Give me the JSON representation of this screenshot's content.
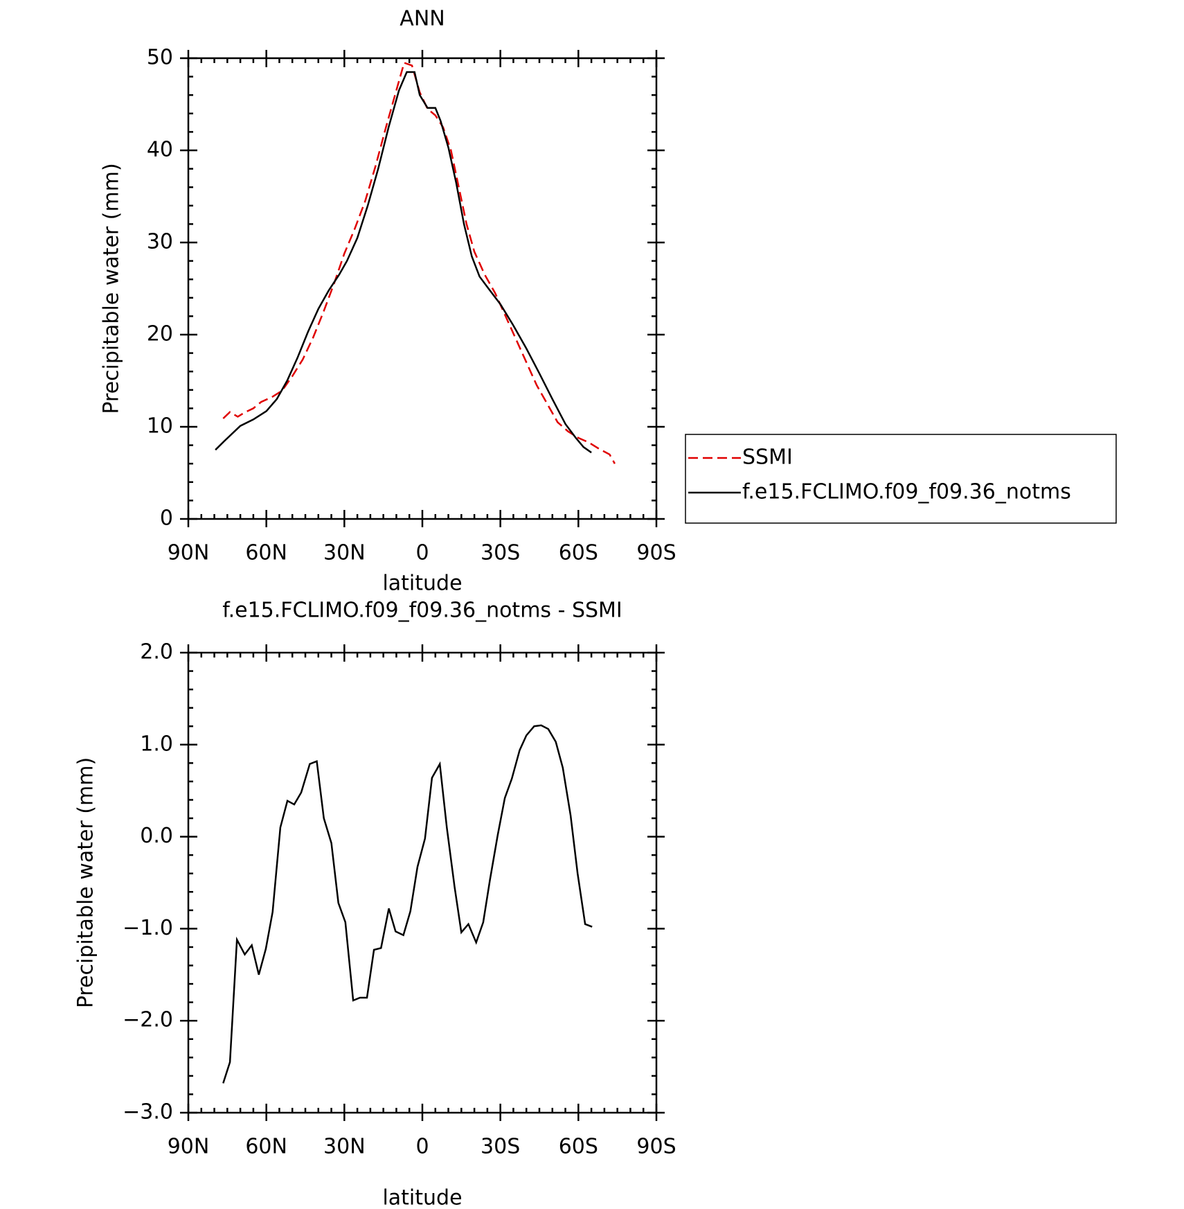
{
  "chart_data": [
    {
      "type": "line",
      "title": "ANN",
      "xlabel": "latitude",
      "ylabel": "Precipitable water (mm)",
      "xlim": [
        90,
        -90
      ],
      "xticks": [
        {
          "value": 90,
          "label": "90N"
        },
        {
          "value": 60,
          "label": "60N"
        },
        {
          "value": 30,
          "label": "30N"
        },
        0,
        {
          "value": -30,
          "label": "30S"
        },
        {
          "value": -60,
          "label": "60S"
        },
        {
          "value": -90,
          "label": "90S"
        }
      ],
      "ylim": [
        0,
        50
      ],
      "yticks": [
        0,
        10,
        20,
        30,
        40,
        50
      ],
      "legend": "right",
      "series": [
        {
          "name": "SSMI",
          "color": "#e00000",
          "style": "dashed",
          "x": [
            76.6,
            74,
            71,
            68,
            65,
            62,
            58,
            54,
            50,
            46,
            42,
            38,
            34,
            30,
            26,
            22,
            18,
            14,
            10,
            7,
            4,
            1,
            -2,
            -5,
            -8,
            -11,
            -14,
            -17,
            -20,
            -24,
            -28,
            -32,
            -36,
            -40,
            -44,
            -48,
            -52,
            -56,
            -60,
            -64,
            -68,
            -72,
            -74
          ],
          "values": [
            10.9,
            11.6,
            11.1,
            11.6,
            12.0,
            12.7,
            13.2,
            13.9,
            15.5,
            17.3,
            19.7,
            22.5,
            25.5,
            28.8,
            31.5,
            34.5,
            38.3,
            42.5,
            46.5,
            49.5,
            49.2,
            46.3,
            44.5,
            43.8,
            42.5,
            40.0,
            36.0,
            32.0,
            29.0,
            26.5,
            24.5,
            22.0,
            19.5,
            17.0,
            14.5,
            12.5,
            10.5,
            9.5,
            8.8,
            8.3,
            7.6,
            7.0,
            6.0
          ]
        },
        {
          "name": "f.e15.FCLIMO.f09_f09.36_notms",
          "color": "#000000",
          "style": "solid",
          "x": [
            79.6,
            76,
            70,
            65,
            60,
            56,
            52,
            48,
            44,
            40,
            36,
            32,
            29,
            25,
            21,
            17,
            13,
            9,
            6,
            3,
            1,
            -2,
            -5,
            -7,
            -10,
            -13,
            -16,
            -19,
            -22,
            -26,
            -30,
            -35,
            -40,
            -45,
            -50,
            -55,
            -59,
            -62,
            -65
          ],
          "values": [
            7.5,
            8.5,
            10.1,
            10.8,
            11.7,
            13.0,
            15.0,
            17.5,
            20.3,
            22.8,
            24.8,
            26.5,
            28.0,
            30.5,
            34.0,
            38.0,
            42.5,
            46.5,
            48.5,
            48.5,
            46.0,
            44.6,
            44.6,
            43.2,
            40.3,
            36.5,
            32.0,
            28.5,
            26.3,
            24.8,
            23.3,
            21.0,
            18.5,
            15.8,
            13.0,
            10.3,
            8.8,
            7.8,
            7.2
          ]
        }
      ]
    },
    {
      "type": "line",
      "title": "f.e15.FCLIMO.f09_f09.36_notms - SSMI",
      "xlabel": "latitude",
      "ylabel": "Precipitable water (mm)",
      "xlim": [
        90,
        -90
      ],
      "xticks": [
        {
          "value": 90,
          "label": "90N"
        },
        {
          "value": 60,
          "label": "60N"
        },
        {
          "value": 30,
          "label": "30N"
        },
        0,
        {
          "value": -30,
          "label": "30S"
        },
        {
          "value": -60,
          "label": "60S"
        },
        {
          "value": -90,
          "label": "90S"
        }
      ],
      "ylim": [
        -3,
        2
      ],
      "yticks": [
        {
          "value": -3,
          "label": "−3.0"
        },
        {
          "value": -2,
          "label": "−2.0"
        },
        {
          "value": -1,
          "label": "−1.0"
        },
        {
          "value": 0,
          "label": "0.0"
        },
        {
          "value": 1,
          "label": "1.0"
        },
        {
          "value": 2,
          "label": "2.0"
        }
      ],
      "series": [
        {
          "color": "#000000",
          "style": "solid",
          "x": [
            76.6,
            74,
            71.3,
            68.3,
            65.6,
            62.9,
            60.2,
            57.6,
            54.6,
            51.9,
            49.3,
            46.6,
            43.3,
            40.6,
            37.9,
            35.0,
            32.3,
            29.6,
            26.6,
            24.0,
            21.3,
            18.6,
            15.9,
            12.9,
            10.3,
            7.3,
            4.6,
            1.9,
            -1.0,
            -3.7,
            -6.7,
            -9.4,
            -12.4,
            -15.0,
            -17.7,
            -20.7,
            -23.4,
            -26.0,
            -29.0,
            -31.7,
            -34.4,
            -37.4,
            -40.0,
            -43.0,
            -45.7,
            -48.4,
            -51.3,
            -54.0,
            -57.0,
            -59.7,
            -62.6,
            -65.3
          ],
          "values": [
            -2.68,
            -2.45,
            -1.12,
            -1.28,
            -1.18,
            -1.5,
            -1.22,
            -0.82,
            0.1,
            0.39,
            0.35,
            0.48,
            0.79,
            0.82,
            0.2,
            -0.07,
            -0.72,
            -0.93,
            -1.78,
            -1.75,
            -1.75,
            -1.23,
            -1.21,
            -0.78,
            -1.03,
            -1.07,
            -0.81,
            -0.33,
            -0.02,
            0.64,
            0.79,
            0.1,
            -0.55,
            -1.04,
            -0.95,
            -1.15,
            -0.93,
            -0.47,
            0.02,
            0.42,
            0.63,
            0.94,
            1.1,
            1.2,
            1.21,
            1.17,
            1.03,
            0.75,
            0.23,
            -0.4,
            -0.95,
            -0.98
          ]
        }
      ]
    }
  ]
}
